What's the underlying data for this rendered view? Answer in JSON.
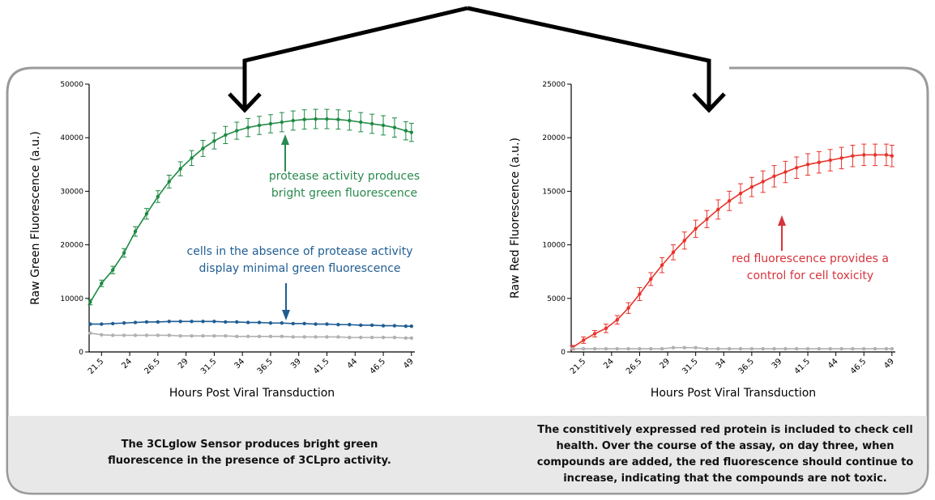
{
  "chart_data": [
    {
      "type": "line",
      "y_label": "Raw Green Fluorescence (a.u.)",
      "x_label": "Hours Post Viral Transduction",
      "x": [
        20.5,
        21.5,
        22.5,
        23.5,
        24.5,
        25.5,
        26.5,
        27.5,
        28.5,
        29.5,
        30.5,
        31.5,
        32.5,
        33.5,
        34.5,
        35.5,
        36.5,
        37.5,
        38.5,
        39.5,
        40.5,
        41.5,
        42.5,
        43.5,
        44.5,
        45.5,
        46.5,
        47.5,
        48.5,
        49
      ],
      "xlim": [
        20.4,
        49.3
      ],
      "xticks": [
        21.5,
        24,
        26.5,
        29,
        31.5,
        34,
        36.5,
        39,
        41.5,
        44,
        46.5,
        49
      ],
      "ylim": [
        0,
        50000
      ],
      "yticks": [
        0,
        10000,
        20000,
        30000,
        40000,
        50000
      ],
      "series": [
        {
          "color": "#1e8a43",
          "values": [
            9300,
            12800,
            15300,
            18500,
            22500,
            25800,
            29000,
            31800,
            34200,
            36200,
            38000,
            39400,
            40500,
            41300,
            41900,
            42300,
            42600,
            42900,
            43200,
            43400,
            43500,
            43500,
            43400,
            43200,
            42900,
            42600,
            42300,
            41900,
            41300,
            41000
          ],
          "errors": [
            500,
            600,
            700,
            800,
            900,
            1000,
            1100,
            1200,
            1300,
            1400,
            1500,
            1500,
            1600,
            1600,
            1700,
            1700,
            1700,
            1800,
            1800,
            1800,
            1800,
            1800,
            1800,
            1800,
            1800,
            1800,
            1800,
            1800,
            1700,
            1700
          ]
        },
        {
          "color": "#1f5d93",
          "values": [
            5200,
            5200,
            5300,
            5400,
            5500,
            5600,
            5600,
            5700,
            5700,
            5700,
            5700,
            5700,
            5600,
            5600,
            5500,
            5500,
            5400,
            5400,
            5300,
            5300,
            5200,
            5200,
            5100,
            5100,
            5000,
            5000,
            4900,
            4900,
            4800,
            4800
          ]
        },
        {
          "color": "#b0b0b0",
          "values": [
            3500,
            3200,
            3100,
            3100,
            3100,
            3100,
            3100,
            3100,
            3000,
            3000,
            3000,
            3000,
            3000,
            2900,
            2900,
            2900,
            2900,
            2900,
            2800,
            2800,
            2800,
            2800,
            2800,
            2700,
            2700,
            2700,
            2700,
            2700,
            2600,
            2600
          ]
        }
      ],
      "annotations": [
        {
          "color": "#2a8a4f",
          "lines": [
            "protease activity produces",
            "bright green fluorescence"
          ]
        },
        {
          "color": "#1f5d93",
          "lines": [
            "cells in the absence of protease activity",
            "display minimal green fluorescence"
          ]
        }
      ]
    },
    {
      "type": "line",
      "y_label": "Raw Red Fluorescence (a.u.)",
      "x_label": "Hours Post Viral Transduction",
      "x": [
        20.5,
        21.5,
        22.5,
        23.5,
        24.5,
        25.5,
        26.5,
        27.5,
        28.5,
        29.5,
        30.5,
        31.5,
        32.5,
        33.5,
        34.5,
        35.5,
        36.5,
        37.5,
        38.5,
        39.5,
        40.5,
        41.5,
        42.5,
        43.5,
        44.5,
        45.5,
        46.5,
        47.5,
        48.5,
        49
      ],
      "xlim": [
        20.4,
        49.3
      ],
      "xticks": [
        21.5,
        24,
        26.5,
        29,
        31.5,
        34,
        36.5,
        39,
        41.5,
        44,
        46.5,
        49
      ],
      "ylim": [
        0,
        25000
      ],
      "yticks": [
        0,
        5000,
        10000,
        15000,
        20000,
        25000
      ],
      "series": [
        {
          "color": "#e8332b",
          "values": [
            400,
            1100,
            1700,
            2200,
            3000,
            4100,
            5400,
            6800,
            8100,
            9300,
            10400,
            11500,
            12400,
            13300,
            14100,
            14800,
            15400,
            15900,
            16400,
            16800,
            17200,
            17500,
            17700,
            17900,
            18100,
            18300,
            18400,
            18400,
            18400,
            18300
          ],
          "errors": [
            200,
            300,
            300,
            400,
            400,
            500,
            600,
            600,
            700,
            700,
            800,
            800,
            800,
            900,
            900,
            900,
            900,
            1000,
            1000,
            1000,
            1000,
            1000,
            1000,
            1000,
            1000,
            1000,
            1000,
            1000,
            1000,
            1000
          ]
        },
        {
          "color": "#b0b0b0",
          "values": [
            300,
            300,
            300,
            300,
            300,
            300,
            300,
            300,
            300,
            400,
            400,
            400,
            300,
            300,
            300,
            300,
            300,
            300,
            300,
            300,
            300,
            300,
            300,
            300,
            300,
            300,
            300,
            300,
            300,
            300
          ]
        }
      ],
      "annotations": [
        {
          "color": "#d6343c",
          "lines": [
            "red fluorescence provides a",
            "control for cell toxicity"
          ]
        }
      ]
    }
  ],
  "captions": [
    {
      "lines": [
        "The 3CLglow Sensor produces bright green",
        "fluorescence in the presence of 3CLpro activity."
      ]
    },
    {
      "lines": [
        "The constitively expressed red protein is included to check cell",
        "health. Over the course of the assay, on day three, when",
        "compounds are added, the red fluorescence should continue to",
        "increase, indicating that the compounds are not toxic."
      ]
    }
  ]
}
